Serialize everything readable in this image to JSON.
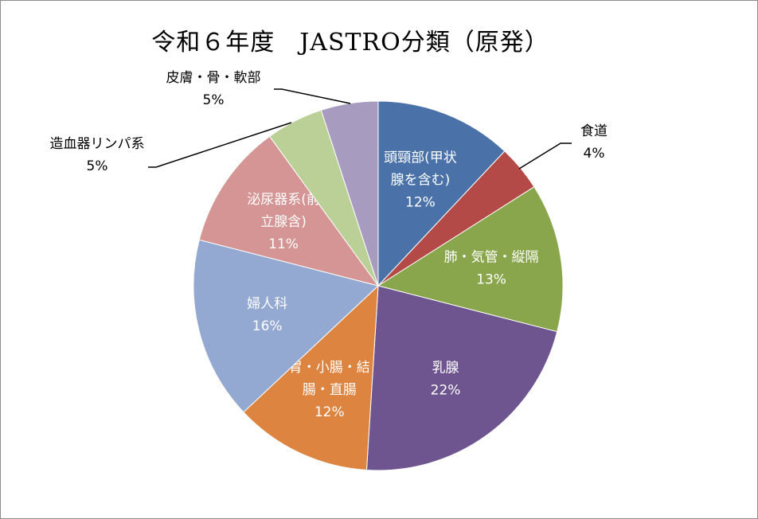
{
  "chart_data": {
    "type": "pie",
    "title": "令和６年度　JASTRO分類（原発）",
    "slices": [
      {
        "label": [
          "頭頸部(甲状",
          "腺を含む)"
        ],
        "pct_label": "12%",
        "value": 12,
        "color": "#4a72a8",
        "placement": "inside"
      },
      {
        "label": [
          "食道"
        ],
        "pct_label": "4%",
        "value": 4,
        "color": "#b34a48",
        "placement": "outside-right"
      },
      {
        "label": [
          "肺・気管・縦隔"
        ],
        "pct_label": "13%",
        "value": 13,
        "color": "#8aa64c",
        "placement": "inside"
      },
      {
        "label": [
          "乳腺"
        ],
        "pct_label": "22%",
        "value": 22,
        "color": "#6e5590",
        "placement": "inside"
      },
      {
        "label": [
          "胃・小腸・結",
          "腸・直腸"
        ],
        "pct_label": "12%",
        "value": 12,
        "color": "#dc8440",
        "placement": "inside"
      },
      {
        "label": [
          "婦人科"
        ],
        "pct_label": "16%",
        "value": 16,
        "color": "#93a9d2",
        "placement": "inside"
      },
      {
        "label": [
          "泌尿器系(前",
          "立腺含)"
        ],
        "pct_label": "11%",
        "value": 11,
        "color": "#d49594",
        "placement": "inside"
      },
      {
        "label": [
          "造血器リンパ系"
        ],
        "pct_label": "5%",
        "value": 5,
        "color": "#bad096",
        "placement": "outside-left"
      },
      {
        "label": [
          "皮膚・骨・軟部"
        ],
        "pct_label": "5%",
        "value": 5,
        "color": "#a89bc0",
        "placement": "outside-top"
      }
    ]
  }
}
